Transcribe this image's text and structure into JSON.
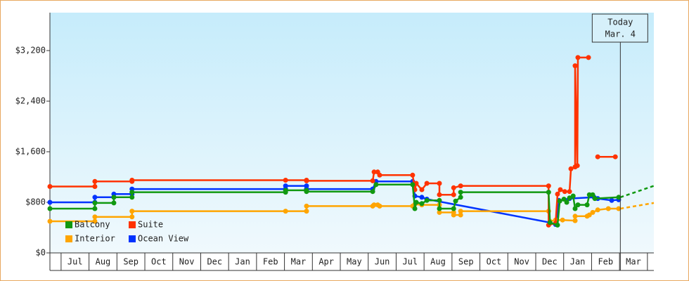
{
  "chart_data": {
    "type": "line",
    "xlim": [
      -0.4,
      21.23
    ],
    "ylim": [
      0,
      3800
    ],
    "yticks": [
      {
        "value": 0,
        "label": "$0"
      },
      {
        "value": 800,
        "label": "$800"
      },
      {
        "value": 1600,
        "label": "$1,600"
      },
      {
        "value": 2400,
        "label": "$2,400"
      },
      {
        "value": 3200,
        "label": "$3,200"
      }
    ],
    "xticks": [
      {
        "value": 0,
        "label": "Jul"
      },
      {
        "value": 1,
        "label": "Aug"
      },
      {
        "value": 2,
        "label": "Sep"
      },
      {
        "value": 3,
        "label": "Oct"
      },
      {
        "value": 4,
        "label": "Nov"
      },
      {
        "value": 5,
        "label": "Dec"
      },
      {
        "value": 6,
        "label": "Jan"
      },
      {
        "value": 7,
        "label": "Feb"
      },
      {
        "value": 8,
        "label": "Mar"
      },
      {
        "value": 9,
        "label": "Apr"
      },
      {
        "value": 10,
        "label": "May"
      },
      {
        "value": 11,
        "label": "Jun"
      },
      {
        "value": 12,
        "label": "Jul"
      },
      {
        "value": 13,
        "label": "Aug"
      },
      {
        "value": 14,
        "label": "Sep"
      },
      {
        "value": 15,
        "label": "Oct"
      },
      {
        "value": 16,
        "label": "Nov"
      },
      {
        "value": 17,
        "label": "Dec"
      },
      {
        "value": 18,
        "label": "Jan"
      },
      {
        "value": 19,
        "label": "Feb"
      },
      {
        "value": 20,
        "label": "Mar"
      }
    ],
    "today": {
      "x": 20.03,
      "label": [
        "Today",
        "Mar. 4"
      ]
    },
    "legend": "lower-left",
    "series": [
      {
        "name": "Balcony",
        "color": "#119911",
        "x": [
          -0.4,
          1.21,
          1.21,
          1.89,
          1.89,
          2.54,
          2.54,
          8.04,
          8.04,
          8.79,
          8.79,
          11.16,
          11.28,
          12.59,
          12.67,
          12.72,
          12.92,
          13.1,
          13.55,
          13.55,
          14.06,
          14.13,
          14.31,
          14.31,
          17.46,
          17.51,
          17.78,
          17.86,
          18.01,
          18.11,
          18.21,
          18.34,
          18.41,
          18.51,
          18.84,
          18.92,
          19.04,
          19.12,
          19.97
        ],
        "values": [
          700,
          700,
          790,
          790,
          880,
          880,
          960,
          960,
          990,
          990,
          970,
          970,
          1080,
          1080,
          700,
          800,
          780,
          830,
          830,
          700,
          700,
          820,
          880,
          960,
          960,
          480,
          440,
          820,
          850,
          800,
          870,
          900,
          700,
          760,
          760,
          920,
          920,
          860,
          880
        ],
        "forecast": {
          "x": [
            20.03,
            21.23
          ],
          "values": [
            880,
            1060
          ]
        }
      },
      {
        "name": "Suite",
        "color": "#ff3300",
        "x": [
          -0.4,
          1.21,
          1.21,
          2.54,
          2.54,
          8.04,
          8.79,
          8.79,
          11.16,
          11.21,
          11.34,
          11.41,
          12.59,
          12.67,
          12.72,
          12.92,
          13.1,
          13.55,
          13.55,
          14.06,
          14.06,
          14.31,
          17.46,
          17.46,
          17.71,
          17.78,
          17.88,
          18.04,
          18.21,
          18.26,
          18.41,
          18.41,
          18.49,
          18.51,
          18.89,
          null,
          19.22,
          19.85
        ],
        "values": [
          1050,
          1050,
          1130,
          1130,
          1150,
          1150,
          1150,
          1140,
          1140,
          1280,
          1280,
          1230,
          1230,
          1000,
          1100,
          1000,
          1100,
          1100,
          920,
          920,
          1030,
          1060,
          1060,
          440,
          470,
          930,
          1000,
          970,
          970,
          1330,
          1360,
          2960,
          1380,
          3090,
          3090,
          null,
          1520,
          1520
        ]
      },
      {
        "name": "Interior",
        "color": "#ffa500",
        "x": [
          -0.4,
          1.21,
          1.21,
          2.54,
          2.54,
          8.04,
          8.79,
          8.79,
          11.16,
          11.21,
          11.34,
          11.41,
          12.59,
          12.67,
          12.92,
          13.55,
          13.55,
          14.06,
          14.06,
          14.31,
          14.31,
          17.46,
          17.51,
          17.71,
          17.96,
          18.41,
          18.41,
          18.84,
          18.92,
          19.04,
          19.22,
          19.6,
          19.97
        ],
        "values": [
          500,
          500,
          570,
          570,
          660,
          660,
          660,
          740,
          740,
          760,
          760,
          740,
          740,
          770,
          760,
          760,
          640,
          640,
          600,
          600,
          660,
          660,
          500,
          520,
          520,
          510,
          580,
          580,
          600,
          640,
          680,
          700,
          700
        ],
        "forecast": {
          "x": [
            20.03,
            21.23
          ],
          "values": [
            700,
            790
          ]
        }
      },
      {
        "name": "Ocean View",
        "color": "#0033ff",
        "x": [
          -0.4,
          1.21,
          1.21,
          1.89,
          1.89,
          2.54,
          2.54,
          8.04,
          8.04,
          8.79,
          8.79,
          11.16,
          11.28,
          12.59,
          12.67,
          12.92,
          13.1,
          17.51,
          17.71,
          17.83,
          18.21,
          19.09,
          19.22,
          19.72,
          19.97
        ],
        "values": [
          800,
          800,
          880,
          880,
          930,
          930,
          1010,
          1010,
          1060,
          1060,
          1010,
          1010,
          1130,
          1130,
          900,
          880,
          850,
          480,
          450,
          830,
          860,
          880,
          860,
          830,
          840
        ]
      }
    ]
  }
}
